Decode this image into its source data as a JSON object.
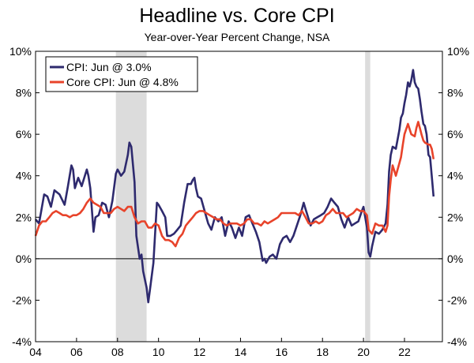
{
  "chart_data": {
    "type": "line",
    "title": "Headline vs. Core CPI",
    "subtitle": "Year-over-Year Percent Change, NSA",
    "ylim": [
      -4,
      10
    ],
    "xlim": [
      2004.0,
      2023.85
    ],
    "y_ticks": [
      -4,
      -2,
      0,
      2,
      4,
      6,
      8,
      10
    ],
    "y_tick_labels": [
      "-4%",
      "-2%",
      "0%",
      "2%",
      "4%",
      "6%",
      "8%",
      "10%"
    ],
    "x_ticks": [
      2004,
      2006,
      2008,
      2010,
      2012,
      2014,
      2016,
      2018,
      2020,
      2022
    ],
    "x_tick_labels": [
      "04",
      "06",
      "08",
      "10",
      "12",
      "14",
      "16",
      "18",
      "20",
      "22"
    ],
    "grid": false,
    "legend_position": "top-left",
    "recessions": [
      [
        2007.92,
        2009.42
      ],
      [
        2020.08,
        2020.33
      ]
    ],
    "series": [
      {
        "name": "CPI: Jun @ 3.0%",
        "color": "#2e2a6e",
        "points": [
          [
            2004.0,
            1.9
          ],
          [
            2004.17,
            1.7
          ],
          [
            2004.42,
            3.1
          ],
          [
            2004.58,
            3.0
          ],
          [
            2004.75,
            2.5
          ],
          [
            2004.92,
            3.3
          ],
          [
            2005.17,
            3.1
          ],
          [
            2005.42,
            2.6
          ],
          [
            2005.58,
            3.5
          ],
          [
            2005.75,
            4.5
          ],
          [
            2005.83,
            4.3
          ],
          [
            2005.92,
            3.4
          ],
          [
            2006.08,
            3.9
          ],
          [
            2006.25,
            3.5
          ],
          [
            2006.5,
            4.3
          ],
          [
            2006.58,
            4.0
          ],
          [
            2006.67,
            3.4
          ],
          [
            2006.83,
            1.3
          ],
          [
            2006.92,
            2.0
          ],
          [
            2007.08,
            2.1
          ],
          [
            2007.25,
            2.7
          ],
          [
            2007.42,
            2.6
          ],
          [
            2007.58,
            2.0
          ],
          [
            2007.75,
            2.8
          ],
          [
            2007.92,
            4.1
          ],
          [
            2008.0,
            4.3
          ],
          [
            2008.17,
            4.0
          ],
          [
            2008.33,
            4.2
          ],
          [
            2008.5,
            5.0
          ],
          [
            2008.58,
            5.6
          ],
          [
            2008.67,
            5.4
          ],
          [
            2008.83,
            3.7
          ],
          [
            2008.92,
            1.1
          ],
          [
            2009.08,
            0.0
          ],
          [
            2009.17,
            0.2
          ],
          [
            2009.25,
            -0.6
          ],
          [
            2009.42,
            -1.4
          ],
          [
            2009.5,
            -2.1
          ],
          [
            2009.58,
            -1.5
          ],
          [
            2009.75,
            -0.2
          ],
          [
            2009.92,
            2.7
          ],
          [
            2010.0,
            2.6
          ],
          [
            2010.17,
            2.3
          ],
          [
            2010.33,
            2.0
          ],
          [
            2010.42,
            1.1
          ],
          [
            2010.58,
            1.1
          ],
          [
            2010.75,
            1.2
          ],
          [
            2010.92,
            1.4
          ],
          [
            2011.08,
            1.6
          ],
          [
            2011.25,
            2.7
          ],
          [
            2011.42,
            3.6
          ],
          [
            2011.58,
            3.6
          ],
          [
            2011.67,
            3.8
          ],
          [
            2011.75,
            3.9
          ],
          [
            2011.83,
            3.4
          ],
          [
            2011.92,
            3.0
          ],
          [
            2012.08,
            2.9
          ],
          [
            2012.25,
            2.3
          ],
          [
            2012.42,
            1.7
          ],
          [
            2012.58,
            1.4
          ],
          [
            2012.75,
            2.0
          ],
          [
            2012.92,
            1.8
          ],
          [
            2013.08,
            2.0
          ],
          [
            2013.25,
            1.1
          ],
          [
            2013.42,
            1.8
          ],
          [
            2013.58,
            1.5
          ],
          [
            2013.75,
            1.0
          ],
          [
            2013.92,
            1.5
          ],
          [
            2014.08,
            1.1
          ],
          [
            2014.25,
            2.0
          ],
          [
            2014.42,
            2.1
          ],
          [
            2014.58,
            1.7
          ],
          [
            2014.75,
            1.3
          ],
          [
            2014.92,
            0.8
          ],
          [
            2015.08,
            -0.1
          ],
          [
            2015.17,
            0.0
          ],
          [
            2015.25,
            -0.2
          ],
          [
            2015.42,
            0.1
          ],
          [
            2015.58,
            0.2
          ],
          [
            2015.75,
            0.0
          ],
          [
            2015.92,
            0.7
          ],
          [
            2016.08,
            1.0
          ],
          [
            2016.25,
            1.1
          ],
          [
            2016.42,
            0.8
          ],
          [
            2016.58,
            1.1
          ],
          [
            2016.75,
            1.6
          ],
          [
            2016.92,
            2.1
          ],
          [
            2017.08,
            2.7
          ],
          [
            2017.17,
            2.4
          ],
          [
            2017.33,
            1.9
          ],
          [
            2017.42,
            1.6
          ],
          [
            2017.58,
            1.9
          ],
          [
            2017.75,
            2.0
          ],
          [
            2017.92,
            2.1
          ],
          [
            2018.08,
            2.2
          ],
          [
            2018.25,
            2.5
          ],
          [
            2018.42,
            2.9
          ],
          [
            2018.58,
            2.7
          ],
          [
            2018.75,
            2.5
          ],
          [
            2018.92,
            1.9
          ],
          [
            2019.08,
            1.5
          ],
          [
            2019.25,
            2.0
          ],
          [
            2019.42,
            1.6
          ],
          [
            2019.58,
            1.7
          ],
          [
            2019.75,
            1.8
          ],
          [
            2019.92,
            2.3
          ],
          [
            2020.0,
            2.5
          ],
          [
            2020.17,
            1.5
          ],
          [
            2020.25,
            0.3
          ],
          [
            2020.33,
            0.1
          ],
          [
            2020.42,
            0.6
          ],
          [
            2020.58,
            1.3
          ],
          [
            2020.75,
            1.2
          ],
          [
            2020.92,
            1.4
          ],
          [
            2021.08,
            1.7
          ],
          [
            2021.17,
            2.6
          ],
          [
            2021.25,
            4.2
          ],
          [
            2021.33,
            5.0
          ],
          [
            2021.42,
            5.4
          ],
          [
            2021.58,
            5.3
          ],
          [
            2021.75,
            6.2
          ],
          [
            2021.83,
            6.8
          ],
          [
            2021.92,
            7.0
          ],
          [
            2022.0,
            7.5
          ],
          [
            2022.08,
            7.9
          ],
          [
            2022.17,
            8.5
          ],
          [
            2022.25,
            8.3
          ],
          [
            2022.33,
            8.6
          ],
          [
            2022.42,
            9.1
          ],
          [
            2022.5,
            8.5
          ],
          [
            2022.58,
            8.3
          ],
          [
            2022.67,
            8.2
          ],
          [
            2022.75,
            7.7
          ],
          [
            2022.83,
            7.1
          ],
          [
            2022.92,
            6.5
          ],
          [
            2023.0,
            6.4
          ],
          [
            2023.08,
            6.0
          ],
          [
            2023.17,
            5.0
          ],
          [
            2023.25,
            4.9
          ],
          [
            2023.33,
            4.0
          ],
          [
            2023.42,
            3.0
          ]
        ]
      },
      {
        "name": "Core CPI: Jun @ 4.8%",
        "color": "#e8432a",
        "points": [
          [
            2004.0,
            1.1
          ],
          [
            2004.17,
            1.6
          ],
          [
            2004.33,
            1.8
          ],
          [
            2004.5,
            1.8
          ],
          [
            2004.67,
            2.0
          ],
          [
            2004.83,
            2.2
          ],
          [
            2005.0,
            2.3
          ],
          [
            2005.17,
            2.2
          ],
          [
            2005.33,
            2.1
          ],
          [
            2005.5,
            2.1
          ],
          [
            2005.67,
            2.0
          ],
          [
            2005.83,
            2.1
          ],
          [
            2006.0,
            2.1
          ],
          [
            2006.17,
            2.2
          ],
          [
            2006.33,
            2.4
          ],
          [
            2006.5,
            2.7
          ],
          [
            2006.67,
            2.9
          ],
          [
            2006.83,
            2.7
          ],
          [
            2007.0,
            2.6
          ],
          [
            2007.17,
            2.5
          ],
          [
            2007.33,
            2.2
          ],
          [
            2007.5,
            2.2
          ],
          [
            2007.67,
            2.2
          ],
          [
            2007.83,
            2.4
          ],
          [
            2008.0,
            2.5
          ],
          [
            2008.17,
            2.4
          ],
          [
            2008.33,
            2.3
          ],
          [
            2008.5,
            2.5
          ],
          [
            2008.67,
            2.5
          ],
          [
            2008.83,
            2.0
          ],
          [
            2009.0,
            1.7
          ],
          [
            2009.17,
            1.8
          ],
          [
            2009.33,
            1.8
          ],
          [
            2009.5,
            1.5
          ],
          [
            2009.67,
            1.5
          ],
          [
            2009.83,
            1.7
          ],
          [
            2010.0,
            1.6
          ],
          [
            2010.17,
            1.1
          ],
          [
            2010.33,
            0.9
          ],
          [
            2010.5,
            0.9
          ],
          [
            2010.67,
            0.8
          ],
          [
            2010.83,
            0.6
          ],
          [
            2011.0,
            1.0
          ],
          [
            2011.17,
            1.2
          ],
          [
            2011.33,
            1.6
          ],
          [
            2011.5,
            1.8
          ],
          [
            2011.67,
            2.0
          ],
          [
            2011.83,
            2.2
          ],
          [
            2012.0,
            2.3
          ],
          [
            2012.17,
            2.3
          ],
          [
            2012.33,
            2.2
          ],
          [
            2012.5,
            2.1
          ],
          [
            2012.67,
            2.0
          ],
          [
            2012.83,
            1.9
          ],
          [
            2013.0,
            1.9
          ],
          [
            2013.17,
            1.7
          ],
          [
            2013.33,
            1.6
          ],
          [
            2013.5,
            1.7
          ],
          [
            2013.67,
            1.7
          ],
          [
            2013.83,
            1.7
          ],
          [
            2014.0,
            1.6
          ],
          [
            2014.17,
            1.7
          ],
          [
            2014.33,
            1.9
          ],
          [
            2014.5,
            1.9
          ],
          [
            2014.67,
            1.7
          ],
          [
            2014.83,
            1.7
          ],
          [
            2015.0,
            1.6
          ],
          [
            2015.17,
            1.8
          ],
          [
            2015.33,
            1.7
          ],
          [
            2015.5,
            1.8
          ],
          [
            2015.67,
            1.9
          ],
          [
            2015.83,
            2.0
          ],
          [
            2016.0,
            2.2
          ],
          [
            2016.17,
            2.2
          ],
          [
            2016.33,
            2.2
          ],
          [
            2016.5,
            2.2
          ],
          [
            2016.67,
            2.2
          ],
          [
            2016.83,
            2.1
          ],
          [
            2017.0,
            2.3
          ],
          [
            2017.17,
            2.0
          ],
          [
            2017.33,
            1.7
          ],
          [
            2017.5,
            1.7
          ],
          [
            2017.67,
            1.8
          ],
          [
            2017.83,
            1.7
          ],
          [
            2018.0,
            1.8
          ],
          [
            2018.17,
            2.1
          ],
          [
            2018.33,
            2.2
          ],
          [
            2018.5,
            2.4
          ],
          [
            2018.67,
            2.2
          ],
          [
            2018.83,
            2.2
          ],
          [
            2019.0,
            2.2
          ],
          [
            2019.17,
            2.0
          ],
          [
            2019.33,
            2.1
          ],
          [
            2019.5,
            2.2
          ],
          [
            2019.67,
            2.4
          ],
          [
            2019.83,
            2.3
          ],
          [
            2020.0,
            2.3
          ],
          [
            2020.17,
            2.1
          ],
          [
            2020.25,
            1.4
          ],
          [
            2020.42,
            1.2
          ],
          [
            2020.58,
            1.7
          ],
          [
            2020.75,
            1.6
          ],
          [
            2020.92,
            1.6
          ],
          [
            2021.08,
            1.3
          ],
          [
            2021.17,
            1.6
          ],
          [
            2021.25,
            3.0
          ],
          [
            2021.33,
            3.8
          ],
          [
            2021.42,
            4.5
          ],
          [
            2021.58,
            4.0
          ],
          [
            2021.75,
            4.6
          ],
          [
            2021.83,
            4.9
          ],
          [
            2021.92,
            5.5
          ],
          [
            2022.0,
            6.0
          ],
          [
            2022.17,
            6.5
          ],
          [
            2022.33,
            6.0
          ],
          [
            2022.5,
            5.9
          ],
          [
            2022.58,
            6.3
          ],
          [
            2022.67,
            6.6
          ],
          [
            2022.75,
            6.3
          ],
          [
            2022.83,
            6.0
          ],
          [
            2022.92,
            5.7
          ],
          [
            2023.0,
            5.6
          ],
          [
            2023.17,
            5.5
          ],
          [
            2023.25,
            5.5
          ],
          [
            2023.33,
            5.3
          ],
          [
            2023.42,
            4.8
          ]
        ]
      }
    ]
  }
}
